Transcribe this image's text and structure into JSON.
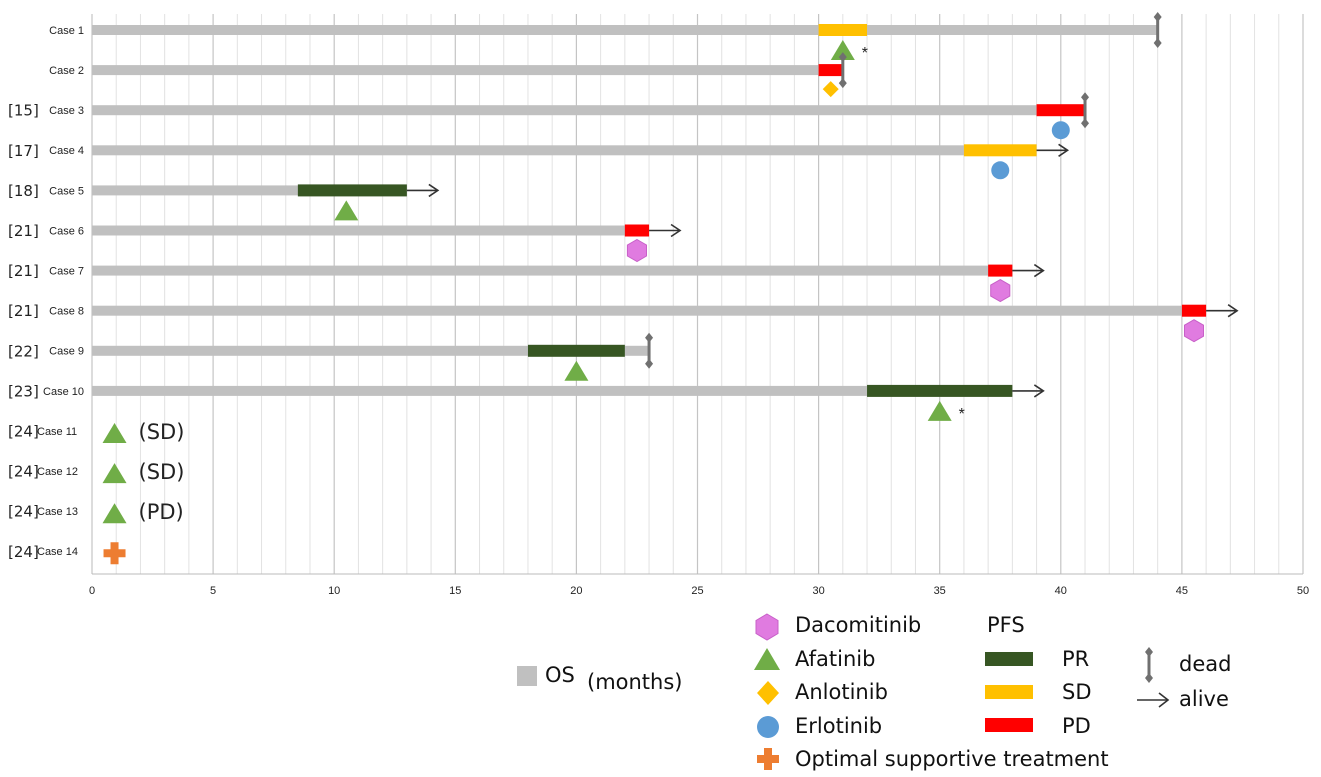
{
  "chart_data": {
    "type": "swimmer-bar",
    "x_axis": {
      "min": 0,
      "max": 50,
      "major_ticks": [
        0,
        5,
        10,
        15,
        20,
        25,
        30,
        35,
        40,
        45,
        50
      ],
      "minor_step": 1,
      "grid": true
    },
    "cases": [
      {
        "ref": "",
        "label": "Case 1",
        "os": 44,
        "pfs_start": 30,
        "pfs_end": 32,
        "pfs": "SD",
        "drug": "Afatinib",
        "drug_x": 31,
        "asterisk": true,
        "outcome": "dead"
      },
      {
        "ref": "",
        "label": "Case 2",
        "os": 31,
        "pfs_start": 30,
        "pfs_end": 31,
        "pfs": "PD",
        "drug": "Anlotinib",
        "drug_x": 30.5,
        "asterisk": false,
        "outcome": "dead"
      },
      {
        "ref": "[15]",
        "label": "Case 3",
        "os": 41,
        "pfs_start": 39,
        "pfs_end": 41,
        "pfs": "PD",
        "drug": "Erlotinib",
        "drug_x": 40,
        "asterisk": false,
        "outcome": "dead"
      },
      {
        "ref": "[17]",
        "label": "Case 4",
        "os": 39,
        "pfs_start": 36,
        "pfs_end": 39,
        "pfs": "SD",
        "drug": "Erlotinib",
        "drug_x": 37.5,
        "asterisk": false,
        "outcome": "alive"
      },
      {
        "ref": "[18]",
        "label": "Case 5",
        "os": 13,
        "pfs_start": 8.5,
        "pfs_end": 13,
        "pfs": "PR",
        "drug": "Afatinib",
        "drug_x": 10.5,
        "asterisk": false,
        "outcome": "alive"
      },
      {
        "ref": "[21]",
        "label": "Case 6",
        "os": 23,
        "pfs_start": 22,
        "pfs_end": 23,
        "pfs": "PD",
        "drug": "Dacomitinib",
        "drug_x": 22.5,
        "asterisk": false,
        "outcome": "alive"
      },
      {
        "ref": "[21]",
        "label": "Case 7",
        "os": 38,
        "pfs_start": 37,
        "pfs_end": 38,
        "pfs": "PD",
        "drug": "Dacomitinib",
        "drug_x": 37.5,
        "asterisk": false,
        "outcome": "alive"
      },
      {
        "ref": "[21]",
        "label": "Case 8",
        "os": 46,
        "pfs_start": 45,
        "pfs_end": 46,
        "pfs": "PD",
        "drug": "Dacomitinib",
        "drug_x": 45.5,
        "asterisk": false,
        "outcome": "alive"
      },
      {
        "ref": "[22]",
        "label": "Case 9",
        "os": 23,
        "pfs_start": 18,
        "pfs_end": 22,
        "pfs": "PR",
        "drug": "Afatinib",
        "drug_x": 20,
        "asterisk": false,
        "outcome": "dead"
      },
      {
        "ref": "[23]",
        "label": "Case 10",
        "os": 38,
        "pfs_start": 32,
        "pfs_end": 38,
        "pfs": "PR",
        "drug": "Afatinib",
        "drug_x": 35,
        "asterisk": true,
        "outcome": "alive"
      },
      {
        "ref": "[24]",
        "label": "Case 11",
        "drug": "Afatinib",
        "drug_x": 0.6,
        "note": "(SD)"
      },
      {
        "ref": "[24]",
        "label": "Case 12",
        "drug": "Afatinib",
        "drug_x": 0.6,
        "note": "(SD)"
      },
      {
        "ref": "[24]",
        "label": "Case 13",
        "drug": "Afatinib",
        "drug_x": 0.6,
        "note": "(PD)"
      },
      {
        "ref": "[24]",
        "label": "Case 14",
        "drug": "Optimal supportive treatment",
        "drug_x": 0.6,
        "note": ""
      }
    ],
    "colors": {
      "os_bar": "#c0c0c0",
      "PR": "#375623",
      "SD": "#ffc000",
      "PD": "#ff0000",
      "Dacomitinib": "#e07be0",
      "Afatinib": "#70ad47",
      "Anlotinib": "#ffc000",
      "Erlotinib": "#5b9bd5",
      "Optimal supportive treatment": "#ed7d31",
      "grid": "#d0d0d0",
      "marker_gray": "#707070"
    }
  },
  "legend": {
    "os_label": "OS",
    "os_unit": "(months)",
    "drugs": [
      {
        "label": "Dacomitinib",
        "icon": "hexagon-icon"
      },
      {
        "label": "Afatinib",
        "icon": "triangle-icon"
      },
      {
        "label": "Anlotinib",
        "icon": "diamond-icon"
      },
      {
        "label": "Erlotinib",
        "icon": "circle-icon"
      },
      {
        "label": "Optimal supportive treatment",
        "icon": "cross-icon"
      }
    ],
    "pfs_title": "PFS",
    "pfs_items": [
      {
        "label": "PR",
        "color_key": "PR"
      },
      {
        "label": "SD",
        "color_key": "SD"
      },
      {
        "label": "PD",
        "color_key": "PD"
      }
    ],
    "dead_label": "dead",
    "alive_label": "alive"
  }
}
